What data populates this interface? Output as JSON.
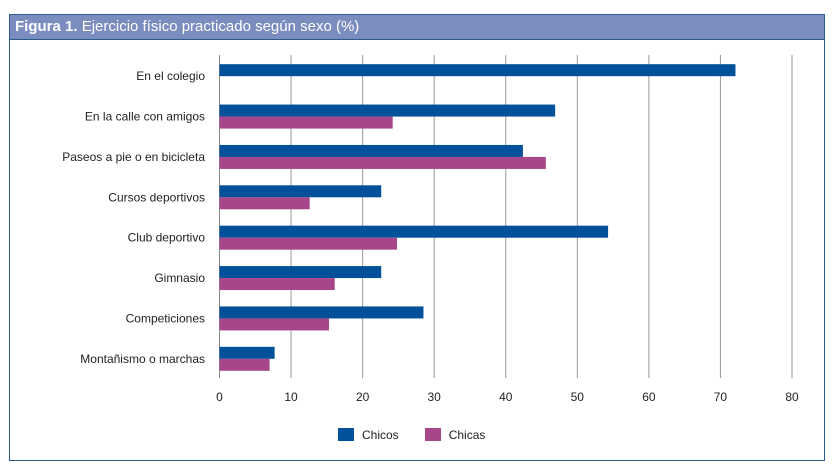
{
  "title": {
    "label": "Figura 1.",
    "text": "Ejercicio físico practicado según sexo (%)"
  },
  "chart_data": {
    "type": "bar",
    "orientation": "horizontal",
    "title": "Figura 1. Ejercicio físico practicado según sexo (%)",
    "categories": [
      "En el colegio",
      "En la calle con amigos",
      "Paseos a pie o en bicicleta",
      "Cursos deportivos",
      "Club deportivo",
      "Gimnasio",
      "Competiciones",
      "Montañismo o marchas"
    ],
    "series": [
      {
        "name": "Chicos",
        "color": "#00519a",
        "values": [
          72.1,
          46.9,
          42.4,
          22.6,
          54.3,
          22.6,
          28.5,
          7.7
        ]
      },
      {
        "name": "Chicas",
        "color": "#a8468c",
        "values": [
          null,
          24.2,
          45.6,
          12.6,
          24.8,
          16.1,
          15.3,
          7.0
        ]
      }
    ],
    "xlim": [
      0,
      80
    ],
    "xticks": [
      0,
      10,
      20,
      30,
      40,
      50,
      60,
      70,
      80
    ],
    "grid": true,
    "legend": "bottom"
  }
}
